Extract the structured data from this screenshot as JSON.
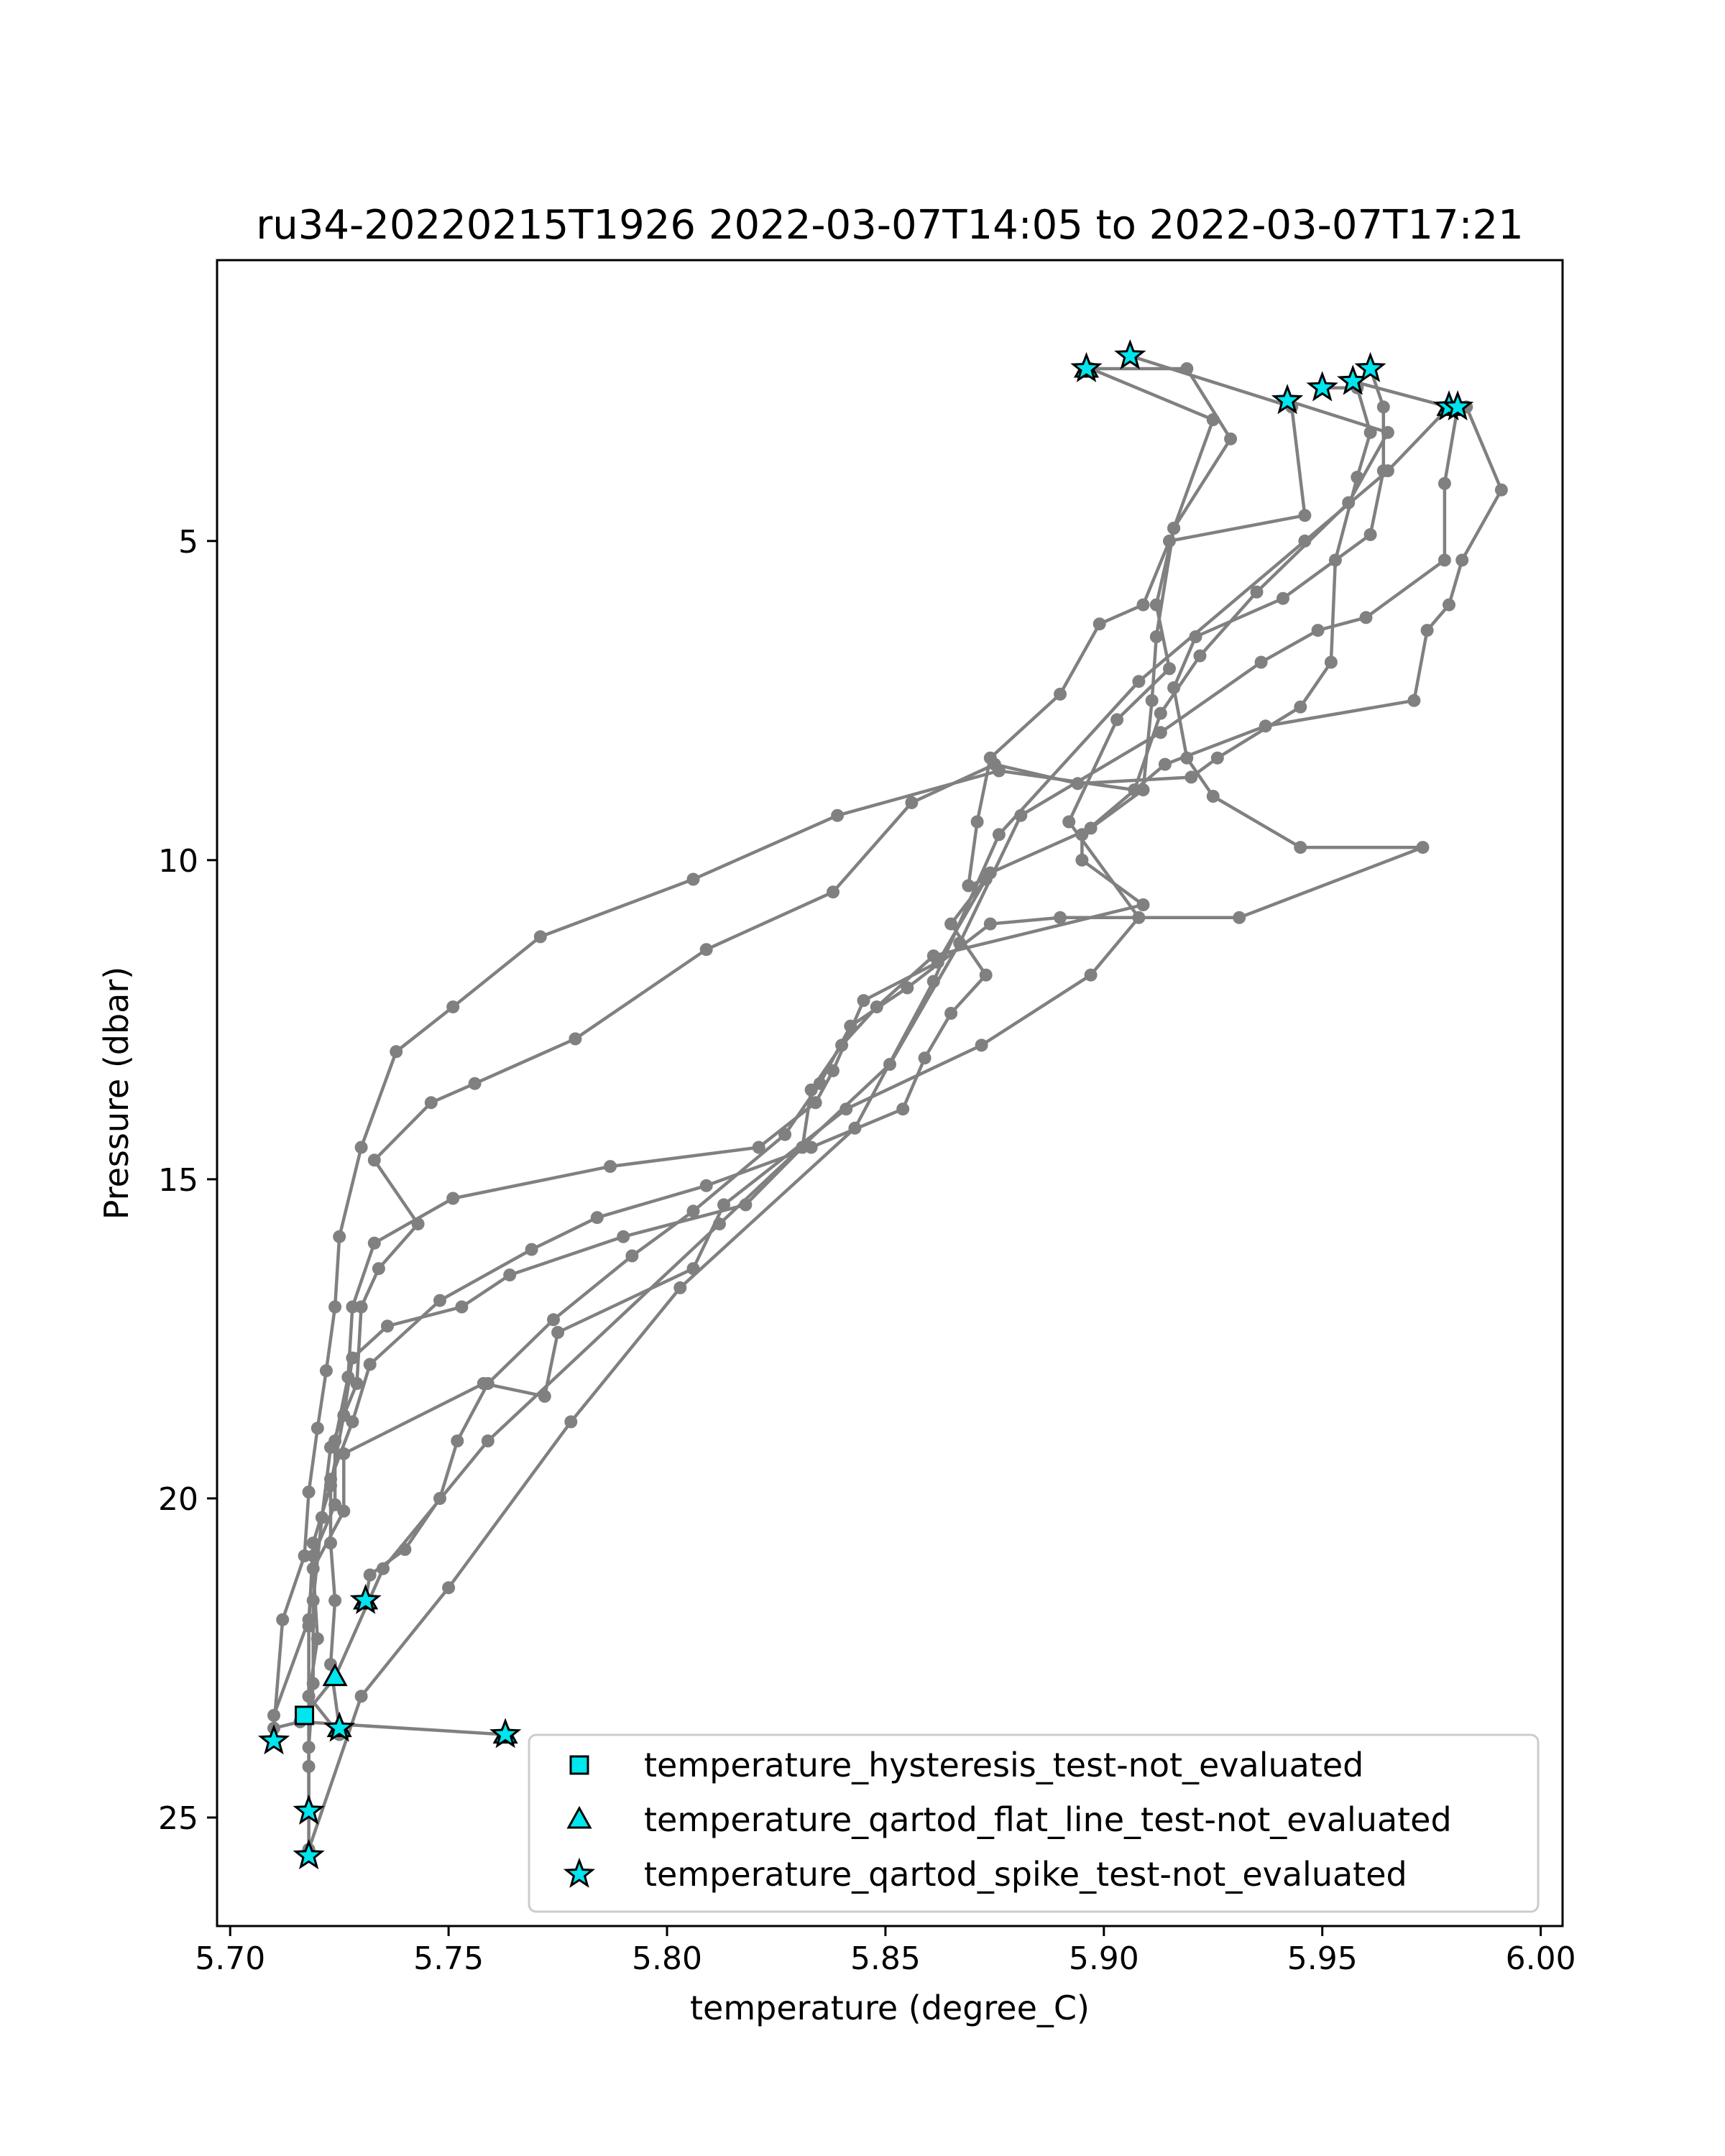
{
  "chart_data": {
    "type": "line",
    "title": "ru34-20220215T1926 2022-03-07T14:05 to 2022-03-07T17:21",
    "xlabel": "temperature (degree_C)",
    "ylabel": "Pressure (dbar)",
    "xlim": [
      5.697,
      6.005
    ],
    "ylim": [
      26.7,
      0.6
    ],
    "y_inverted": true,
    "grid": false,
    "legend_position": "lower-right",
    "xticks": [
      {
        "value": 5.7,
        "label": "5.70"
      },
      {
        "value": 5.75,
        "label": "5.75"
      },
      {
        "value": 5.8,
        "label": "5.80"
      },
      {
        "value": 5.85,
        "label": "5.85"
      },
      {
        "value": 5.9,
        "label": "5.90"
      },
      {
        "value": 5.95,
        "label": "5.95"
      },
      {
        "value": 6.0,
        "label": "6.00"
      }
    ],
    "yticks": [
      {
        "value": 5,
        "label": "5"
      },
      {
        "value": 10,
        "label": "10"
      },
      {
        "value": 15,
        "label": "15"
      },
      {
        "value": 20,
        "label": "20"
      },
      {
        "value": 25,
        "label": "25"
      }
    ],
    "line_color": "#808080",
    "flag_color": "#00e5ee",
    "profiles": [
      [
        [
          5.896,
          2.3
        ],
        [
          5.919,
          2.3
        ],
        [
          5.929,
          3.4
        ],
        [
          5.916,
          4.8
        ],
        [
          5.912,
          6.0
        ],
        [
          5.915,
          7.0
        ],
        [
          5.903,
          7.8
        ],
        [
          5.892,
          9.4
        ],
        [
          5.908,
          10.9
        ],
        [
          5.897,
          11.8
        ],
        [
          5.872,
          12.9
        ],
        [
          5.841,
          13.9
        ],
        [
          5.813,
          15.4
        ],
        [
          5.806,
          16.4
        ],
        [
          5.775,
          17.4
        ],
        [
          5.772,
          18.4
        ],
        [
          5.758,
          18.2
        ],
        [
          5.726,
          19.3
        ],
        [
          5.726,
          20.2
        ],
        [
          5.719,
          21.1
        ],
        [
          5.72,
          22.2
        ],
        [
          5.718,
          23.1
        ],
        [
          5.725,
          23.7
        ]
      ],
      [
        [
          5.906,
          2.1
        ],
        [
          5.943,
          2.9
        ],
        [
          5.946,
          4.6
        ],
        [
          5.915,
          5.0
        ],
        [
          5.909,
          6.0
        ],
        [
          5.899,
          6.3
        ],
        [
          5.89,
          7.4
        ],
        [
          5.874,
          8.4
        ],
        [
          5.871,
          9.4
        ],
        [
          5.869,
          10.4
        ],
        [
          5.873,
          10.3
        ],
        [
          5.862,
          11.6
        ],
        [
          5.845,
          12.2
        ],
        [
          5.838,
          13.3
        ],
        [
          5.834,
          13.8
        ],
        [
          5.821,
          14.5
        ],
        [
          5.787,
          14.8
        ],
        [
          5.751,
          15.3
        ],
        [
          5.733,
          16.0
        ],
        [
          5.728,
          17.0
        ],
        [
          5.727,
          18.1
        ],
        [
          5.724,
          19.1
        ],
        [
          5.724,
          20.1
        ],
        [
          5.719,
          20.9
        ],
        [
          5.718,
          21.9
        ],
        [
          5.71,
          23.4
        ],
        [
          5.71,
          23.8
        ]
      ],
      [
        [
          5.95,
          2.6
        ],
        [
          5.958,
          2.6
        ],
        [
          5.961,
          3.3
        ],
        [
          5.958,
          4.0
        ],
        [
          5.953,
          5.3
        ],
        [
          5.952,
          6.9
        ],
        [
          5.945,
          7.6
        ],
        [
          5.926,
          8.4
        ],
        [
          5.92,
          8.7
        ],
        [
          5.894,
          8.8
        ],
        [
          5.875,
          8.5
        ],
        [
          5.856,
          9.1
        ],
        [
          5.838,
          10.5
        ],
        [
          5.809,
          11.4
        ],
        [
          5.779,
          12.8
        ],
        [
          5.756,
          13.5
        ],
        [
          5.746,
          13.8
        ],
        [
          5.733,
          14.7
        ],
        [
          5.743,
          15.7
        ],
        [
          5.734,
          16.4
        ],
        [
          5.73,
          17.0
        ],
        [
          5.729,
          18.2
        ],
        [
          5.723,
          19.2
        ],
        [
          5.721,
          20.3
        ],
        [
          5.719,
          21.6
        ],
        [
          5.719,
          22.9
        ],
        [
          5.718,
          23.9
        ],
        [
          5.718,
          24.9
        ]
      ],
      [
        [
          5.957,
          2.5
        ],
        [
          5.979,
          2.9
        ],
        [
          5.983,
          2.9
        ],
        [
          5.991,
          4.2
        ],
        [
          5.982,
          5.3
        ],
        [
          5.979,
          6.0
        ],
        [
          5.974,
          6.4
        ],
        [
          5.971,
          7.5
        ],
        [
          5.937,
          7.9
        ],
        [
          5.914,
          8.5
        ],
        [
          5.895,
          9.6
        ],
        [
          5.895,
          10.0
        ],
        [
          5.909,
          10.7
        ],
        [
          5.861,
          11.5
        ],
        [
          5.848,
          12.3
        ],
        [
          5.84,
          12.9
        ],
        [
          5.833,
          13.6
        ],
        [
          5.831,
          14.5
        ],
        [
          5.818,
          15.4
        ],
        [
          5.79,
          15.9
        ],
        [
          5.764,
          16.5
        ],
        [
          5.753,
          17.0
        ],
        [
          5.736,
          17.3
        ],
        [
          5.728,
          17.8
        ],
        [
          5.726,
          18.7
        ],
        [
          5.723,
          19.8
        ],
        [
          5.719,
          20.7
        ],
        [
          5.718,
          22.0
        ],
        [
          5.718,
          23.1
        ],
        [
          5.718,
          24.2
        ],
        [
          5.718,
          25.6
        ]
      ],
      [
        [
          5.961,
          2.3
        ],
        [
          5.964,
          2.9
        ],
        [
          5.964,
          3.9
        ],
        [
          5.961,
          4.9
        ],
        [
          5.941,
          5.9
        ],
        [
          5.921,
          6.5
        ],
        [
          5.916,
          7.3
        ],
        [
          5.919,
          8.4
        ],
        [
          5.925,
          9.0
        ],
        [
          5.945,
          9.8
        ],
        [
          5.973,
          9.8
        ],
        [
          5.931,
          10.9
        ],
        [
          5.89,
          10.9
        ],
        [
          5.874,
          11.0
        ],
        [
          5.855,
          12.0
        ],
        [
          5.842,
          12.6
        ],
        [
          5.835,
          13.5
        ],
        [
          5.827,
          14.3
        ],
        [
          5.806,
          15.5
        ],
        [
          5.792,
          16.2
        ],
        [
          5.774,
          17.2
        ],
        [
          5.759,
          18.2
        ],
        [
          5.752,
          19.1
        ],
        [
          5.748,
          20.0
        ],
        [
          5.74,
          20.8
        ],
        [
          5.732,
          21.2
        ],
        [
          5.731,
          21.6
        ]
      ],
      [
        [
          5.942,
          2.8
        ],
        [
          5.965,
          3.3
        ],
        [
          5.956,
          4.4
        ],
        [
          5.935,
          5.8
        ],
        [
          5.922,
          6.8
        ],
        [
          5.913,
          7.7
        ],
        [
          5.907,
          8.9
        ],
        [
          5.876,
          8.6
        ],
        [
          5.839,
          9.3
        ],
        [
          5.806,
          10.3
        ],
        [
          5.771,
          11.2
        ],
        [
          5.751,
          12.3
        ],
        [
          5.738,
          13.0
        ],
        [
          5.73,
          14.5
        ],
        [
          5.725,
          15.9
        ],
        [
          5.724,
          17.0
        ],
        [
          5.722,
          18.0
        ],
        [
          5.72,
          18.9
        ],
        [
          5.718,
          19.9
        ],
        [
          5.717,
          20.9
        ],
        [
          5.712,
          21.9
        ],
        [
          5.71,
          23.6
        ],
        [
          5.716,
          23.5
        ],
        [
          5.763,
          23.7
        ]
      ],
      [
        [
          5.897,
          2.3
        ],
        [
          5.925,
          3.1
        ],
        [
          5.916,
          4.8
        ],
        [
          5.912,
          6.5
        ],
        [
          5.911,
          7.5
        ],
        [
          5.909,
          8.9
        ],
        [
          5.897,
          9.5
        ],
        [
          5.874,
          10.2
        ],
        [
          5.865,
          11.0
        ],
        [
          5.873,
          11.8
        ],
        [
          5.865,
          12.4
        ],
        [
          5.859,
          13.1
        ],
        [
          5.854,
          13.9
        ],
        [
          5.833,
          14.5
        ],
        [
          5.809,
          15.1
        ],
        [
          5.784,
          15.6
        ],
        [
          5.769,
          16.1
        ],
        [
          5.748,
          16.9
        ],
        [
          5.732,
          17.9
        ],
        [
          5.728,
          18.8
        ],
        [
          5.723,
          19.7
        ],
        [
          5.723,
          20.7
        ],
        [
          5.724,
          21.6
        ],
        [
          5.723,
          22.6
        ],
        [
          5.725,
          23.6
        ]
      ],
      [
        [
          5.981,
          2.9
        ],
        [
          5.978,
          4.1
        ],
        [
          5.978,
          5.3
        ],
        [
          5.96,
          6.2
        ],
        [
          5.949,
          6.4
        ],
        [
          5.936,
          6.9
        ],
        [
          5.913,
          8.0
        ],
        [
          5.881,
          9.3
        ],
        [
          5.867,
          11.3
        ],
        [
          5.851,
          13.2
        ],
        [
          5.812,
          15.7
        ],
        [
          5.759,
          19.1
        ],
        [
          5.735,
          21.1
        ],
        [
          5.724,
          22.8
        ],
        [
          5.717,
          23.4
        ]
      ],
      [
        [
          5.979,
          2.9
        ],
        [
          5.965,
          3.9
        ],
        [
          5.946,
          5.0
        ],
        [
          5.908,
          7.2
        ],
        [
          5.876,
          9.6
        ],
        [
          5.861,
          11.9
        ],
        [
          5.843,
          14.2
        ],
        [
          5.803,
          16.7
        ],
        [
          5.778,
          18.8
        ],
        [
          5.75,
          21.4
        ],
        [
          5.73,
          23.1
        ],
        [
          5.718,
          25.5
        ]
      ]
    ],
    "flags": [
      {
        "kind": "square",
        "x": 5.717,
        "y": 23.4
      },
      {
        "kind": "triangle",
        "x": 5.724,
        "y": 22.8
      },
      {
        "kind": "triangle",
        "x": 5.896,
        "y": 2.3
      },
      {
        "kind": "triangle",
        "x": 5.979,
        "y": 2.9
      },
      {
        "kind": "triangle",
        "x": 5.731,
        "y": 21.6
      },
      {
        "kind": "triangle",
        "x": 5.763,
        "y": 23.7
      },
      {
        "kind": "triangle",
        "x": 5.725,
        "y": 23.6
      },
      {
        "kind": "star",
        "x": 5.896,
        "y": 2.3
      },
      {
        "kind": "star",
        "x": 5.906,
        "y": 2.1
      },
      {
        "kind": "star",
        "x": 5.942,
        "y": 2.8
      },
      {
        "kind": "star",
        "x": 5.95,
        "y": 2.6
      },
      {
        "kind": "star",
        "x": 5.957,
        "y": 2.5
      },
      {
        "kind": "star",
        "x": 5.961,
        "y": 2.3
      },
      {
        "kind": "star",
        "x": 5.979,
        "y": 2.9
      },
      {
        "kind": "star",
        "x": 5.981,
        "y": 2.9
      },
      {
        "kind": "star",
        "x": 5.731,
        "y": 21.6
      },
      {
        "kind": "star",
        "x": 5.725,
        "y": 23.6
      },
      {
        "kind": "star",
        "x": 5.71,
        "y": 23.8
      },
      {
        "kind": "star",
        "x": 5.763,
        "y": 23.7
      },
      {
        "kind": "star",
        "x": 5.718,
        "y": 24.9
      },
      {
        "kind": "star",
        "x": 5.718,
        "y": 25.6
      }
    ],
    "legend": [
      {
        "kind": "square",
        "label": "temperature_hysteresis_test-not_evaluated"
      },
      {
        "kind": "triangle",
        "label": "temperature_qartod_flat_line_test-not_evaluated"
      },
      {
        "kind": "star",
        "label": "temperature_qartod_spike_test-not_evaluated"
      }
    ]
  }
}
